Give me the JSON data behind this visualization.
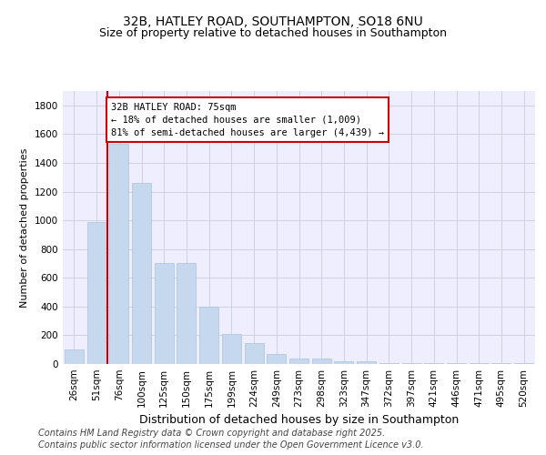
{
  "title": "32B, HATLEY ROAD, SOUTHAMPTON, SO18 6NU",
  "subtitle": "Size of property relative to detached houses in Southampton",
  "xlabel": "Distribution of detached houses by size in Southampton",
  "ylabel": "Number of detached properties",
  "categories": [
    "26sqm",
    "51sqm",
    "76sqm",
    "100sqm",
    "125sqm",
    "150sqm",
    "175sqm",
    "199sqm",
    "224sqm",
    "249sqm",
    "273sqm",
    "298sqm",
    "323sqm",
    "347sqm",
    "372sqm",
    "397sqm",
    "421sqm",
    "446sqm",
    "471sqm",
    "495sqm",
    "520sqm"
  ],
  "values": [
    100,
    990,
    1530,
    1260,
    700,
    700,
    400,
    210,
    145,
    70,
    40,
    40,
    18,
    18,
    8,
    8,
    4,
    4,
    4,
    4,
    4
  ],
  "bar_color": "#c5d8ed",
  "bar_edgecolor": "#a8c4de",
  "vline_color": "#cc0000",
  "annotation_text": "32B HATLEY ROAD: 75sqm\n← 18% of detached houses are smaller (1,009)\n81% of semi-detached houses are larger (4,439) →",
  "annotation_box_facecolor": "#ffffff",
  "annotation_box_edgecolor": "#cc0000",
  "ylim": [
    0,
    1900
  ],
  "yticks": [
    0,
    200,
    400,
    600,
    800,
    1000,
    1200,
    1400,
    1600,
    1800
  ],
  "background_color": "#eeeeff",
  "grid_color": "#ccccdd",
  "footer_line1": "Contains HM Land Registry data © Crown copyright and database right 2025.",
  "footer_line2": "Contains public sector information licensed under the Open Government Licence v3.0.",
  "title_fontsize": 10,
  "subtitle_fontsize": 9,
  "ylabel_fontsize": 8,
  "xlabel_fontsize": 9,
  "tick_fontsize": 7.5,
  "annotation_fontsize": 7.5,
  "footer_fontsize": 7
}
